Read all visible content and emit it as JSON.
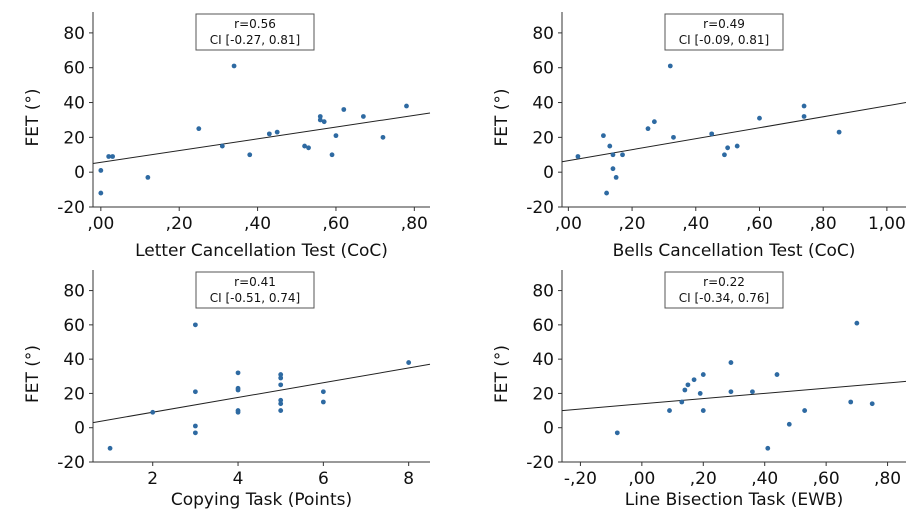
{
  "chart_data": [
    {
      "type": "scatter",
      "id": "p1",
      "xlabel": "Letter Cancellation Test (CoC)",
      "ylabel": "FET (°)",
      "xlim": [
        -0.02,
        0.84
      ],
      "ylim": [
        -20,
        92
      ],
      "xticks": [
        0,
        0.2,
        0.4,
        0.6,
        0.8
      ],
      "xticklabels": [
        ",00",
        ",20",
        ",40",
        ",60",
        ",80"
      ],
      "yticks": [
        -20,
        0,
        20,
        40,
        60,
        80
      ],
      "yticklabels": [
        "-20",
        "0",
        "20",
        "40",
        "60",
        "80"
      ],
      "grid": false,
      "stats": {
        "r": "r=0.56",
        "ci": "CI [-0.27, 0.81]"
      },
      "fit": {
        "x": [
          -0.02,
          0.84
        ],
        "y": [
          5,
          34
        ]
      },
      "x": [
        0.0,
        0.0,
        0.02,
        0.03,
        0.12,
        0.25,
        0.31,
        0.34,
        0.38,
        0.43,
        0.45,
        0.52,
        0.53,
        0.56,
        0.56,
        0.57,
        0.59,
        0.6,
        0.62,
        0.67,
        0.72,
        0.78
      ],
      "y": [
        1,
        -12,
        9,
        9,
        -3,
        25,
        15,
        61,
        10,
        22,
        23,
        15,
        14,
        32,
        30,
        29,
        10,
        21,
        36,
        32,
        20,
        38
      ]
    },
    {
      "type": "scatter",
      "id": "p2",
      "xlabel": "Bells Cancellation Test (CoC)",
      "ylabel": "FET (°)",
      "xlim": [
        -0.02,
        1.06
      ],
      "ylim": [
        -20,
        92
      ],
      "xticks": [
        0,
        0.2,
        0.4,
        0.6,
        0.8,
        1.0
      ],
      "xticklabels": [
        ",00",
        ",20",
        ",40",
        ",60",
        ",80",
        "1,00"
      ],
      "yticks": [
        -20,
        0,
        20,
        40,
        60,
        80
      ],
      "yticklabels": [
        "-20",
        "0",
        "20",
        "40",
        "60",
        "80"
      ],
      "grid": false,
      "stats": {
        "r": "r=0.49",
        "ci": "CI [-0.09, 0.81]"
      },
      "fit": {
        "x": [
          -0.02,
          1.06
        ],
        "y": [
          6,
          40
        ]
      },
      "x": [
        0.03,
        0.11,
        0.12,
        0.13,
        0.14,
        0.14,
        0.15,
        0.17,
        0.25,
        0.27,
        0.32,
        0.33,
        0.45,
        0.49,
        0.5,
        0.53,
        0.6,
        0.74,
        0.74,
        0.85
      ],
      "y": [
        9,
        21,
        -12,
        15,
        2,
        10,
        -3,
        10,
        25,
        29,
        61,
        20,
        22,
        10,
        14,
        15,
        31,
        38,
        32,
        23
      ]
    },
    {
      "type": "scatter",
      "id": "p3",
      "xlabel": "Copying Task (Points)",
      "ylabel": "FET (°)",
      "xlim": [
        0.6,
        8.5
      ],
      "ylim": [
        -20,
        92
      ],
      "xticks": [
        2,
        4,
        6,
        8
      ],
      "xticklabels": [
        "2",
        "4",
        "6",
        "8"
      ],
      "yticks": [
        -20,
        0,
        20,
        40,
        60,
        80
      ],
      "yticklabels": [
        "-20",
        "0",
        "20",
        "40",
        "60",
        "80"
      ],
      "grid": false,
      "stats": {
        "r": "r=0.41",
        "ci": "CI [-0.51, 0.74]"
      },
      "fit": {
        "x": [
          0.6,
          8.5
        ],
        "y": [
          3,
          37
        ]
      },
      "x": [
        1,
        2,
        3,
        3,
        3,
        3,
        4,
        4,
        4,
        4,
        4,
        5,
        5,
        5,
        5,
        5,
        5,
        6,
        6,
        8
      ],
      "y": [
        -12,
        9,
        60,
        21,
        1,
        -3,
        32,
        23,
        22,
        10,
        9,
        31,
        29,
        25,
        16,
        14,
        10,
        21,
        15,
        38
      ]
    },
    {
      "type": "scatter",
      "id": "p4",
      "xlabel": "Line Bisection Task (EWB)",
      "ylabel": "FET (°)",
      "xlim": [
        -0.26,
        0.86
      ],
      "ylim": [
        -20,
        92
      ],
      "xticks": [
        -0.2,
        0,
        0.2,
        0.4,
        0.6,
        0.8
      ],
      "xticklabels": [
        "-,20",
        ",00",
        ",20",
        ",40",
        ",60",
        ",80"
      ],
      "yticks": [
        -20,
        0,
        20,
        40,
        60,
        80
      ],
      "yticklabels": [
        "-20",
        "0",
        "20",
        "40",
        "60",
        "80"
      ],
      "grid": false,
      "stats": {
        "r": "r=0.22",
        "ci": "CI [-0.34, 0.76]"
      },
      "fit": {
        "x": [
          -0.26,
          0.86
        ],
        "y": [
          10,
          27
        ]
      },
      "x": [
        -0.08,
        0.09,
        0.13,
        0.14,
        0.15,
        0.17,
        0.19,
        0.2,
        0.2,
        0.29,
        0.29,
        0.36,
        0.41,
        0.44,
        0.48,
        0.53,
        0.68,
        0.7,
        0.75
      ],
      "y": [
        -3,
        10,
        15,
        22,
        25,
        28,
        20,
        31,
        10,
        38,
        21,
        21,
        -12,
        31,
        2,
        10,
        15,
        61,
        14
      ]
    }
  ]
}
